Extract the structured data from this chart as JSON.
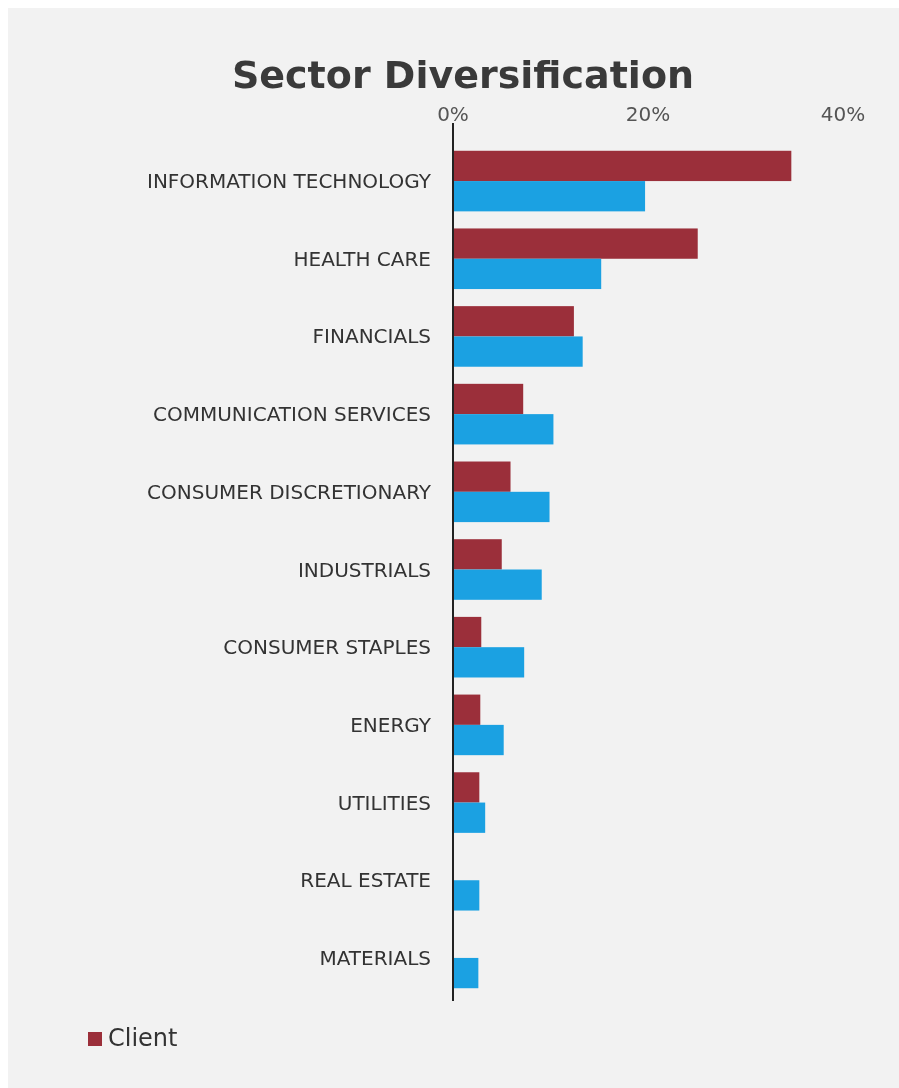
{
  "chart_data": {
    "type": "bar",
    "orientation": "horizontal",
    "title": "Sector Diversification",
    "categories": [
      "INFORMATION TECHNOLOGY",
      "HEALTH CARE",
      "FINANCIALS",
      "COMMUNICATION SERVICES",
      "CONSUMER DISCRETIONARY",
      "INDUSTRIALS",
      "CONSUMER STAPLES",
      "ENERGY",
      "UTILITIES",
      "REAL ESTATE",
      "MATERIALS"
    ],
    "series": [
      {
        "name": "Client",
        "color": "#9b2f3a",
        "values": [
          34.7,
          25.1,
          12.4,
          7.2,
          5.9,
          5.0,
          2.9,
          2.8,
          2.7,
          0,
          0
        ]
      },
      {
        "color": "#1ba1e2",
        "values": [
          19.7,
          15.2,
          13.3,
          10.3,
          9.9,
          9.1,
          7.3,
          5.2,
          3.3,
          2.7,
          2.6
        ]
      }
    ],
    "xlim": [
      0,
      40
    ],
    "xticks": [
      {
        "value": 0,
        "label": "0%"
      },
      {
        "value": 20,
        "label": "20%"
      },
      {
        "value": 40,
        "label": "40%"
      }
    ],
    "legend": "bottom left",
    "grid": false
  }
}
